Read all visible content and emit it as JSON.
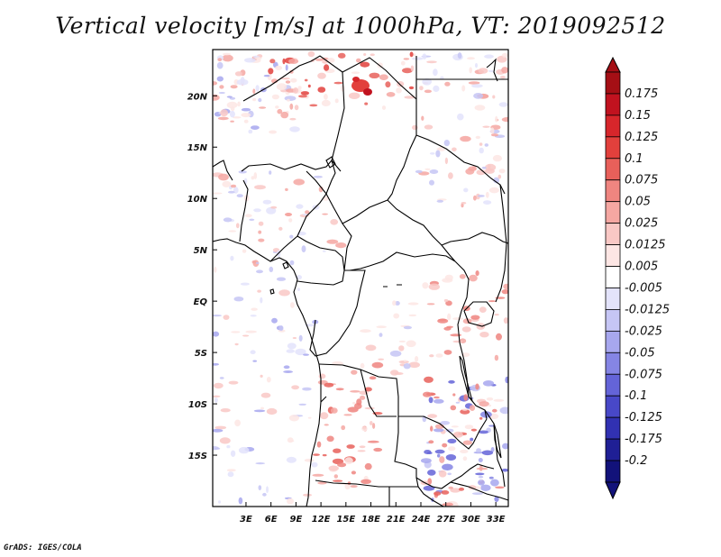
{
  "title": "Vertical velocity [m/s] at 1000hPa, VT: 2019092512",
  "footer": "GrADS: IGES/COLA",
  "map": {
    "projection": "latlon",
    "lon_range": [
      -1,
      34.5
    ],
    "lat_range": [
      -20,
      24.5
    ],
    "lat_ticks": [
      {
        "value": 20,
        "label": "20N"
      },
      {
        "value": 15,
        "label": "15N"
      },
      {
        "value": 10,
        "label": "10N"
      },
      {
        "value": 5,
        "label": "5N"
      },
      {
        "value": 0,
        "label": "EQ"
      },
      {
        "value": -5,
        "label": "5S"
      },
      {
        "value": -10,
        "label": "10S"
      },
      {
        "value": -15,
        "label": "15S"
      }
    ],
    "lon_ticks": [
      {
        "value": 3,
        "label": "3E"
      },
      {
        "value": 6,
        "label": "6E"
      },
      {
        "value": 9,
        "label": "9E"
      },
      {
        "value": 12,
        "label": "12E"
      },
      {
        "value": 15,
        "label": "15E"
      },
      {
        "value": 18,
        "label": "18E"
      },
      {
        "value": 21,
        "label": "21E"
      },
      {
        "value": 24,
        "label": "24E"
      },
      {
        "value": 27,
        "label": "27E"
      },
      {
        "value": 30,
        "label": "30E"
      },
      {
        "value": 33,
        "label": "33E"
      }
    ]
  },
  "colorbar": {
    "labels": [
      "0.175",
      "0.15",
      "0.125",
      "0.1",
      "0.075",
      "0.05",
      "0.025",
      "0.0125",
      "0.005",
      "-0.005",
      "-0.0125",
      "-0.025",
      "-0.05",
      "-0.075",
      "-0.1",
      "-0.125",
      "-0.175",
      "-0.2"
    ],
    "colors": [
      "#a50f15",
      "#c1121f",
      "#d7262b",
      "#e2403c",
      "#e8605a",
      "#ef8580",
      "#f5a7a2",
      "#f9c8c5",
      "#fde6e4",
      "#ffffff",
      "#e3e3fb",
      "#c6c6f5",
      "#a7a7ee",
      "#8585e4",
      "#6464d8",
      "#4848c8",
      "#3131b2",
      "#1f1f95",
      "#12127a"
    ],
    "tip_top_color": "#a50f15",
    "tip_bottom_color": "#12127a"
  }
}
